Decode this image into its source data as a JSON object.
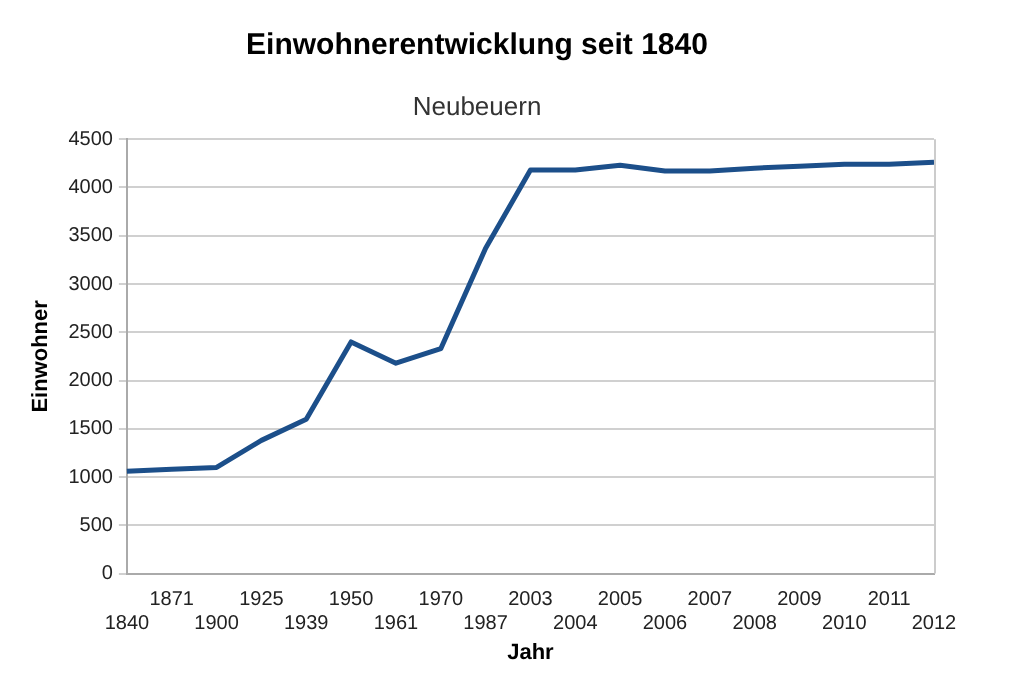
{
  "chart_data": {
    "type": "line",
    "title": "Einwohnerentwicklung seit 1840",
    "subtitle": "Neubeuern",
    "xlabel": "Jahr",
    "ylabel": "Einwohner",
    "categories": [
      "1840",
      "1871",
      "1900",
      "1925",
      "1939",
      "1950",
      "1961",
      "1970",
      "1987",
      "2003",
      "2004",
      "2005",
      "2006",
      "2007",
      "2008",
      "2009",
      "2010",
      "2011",
      "2012"
    ],
    "series": [
      {
        "color": "#1c4f8a",
        "values": [
          1060,
          1080,
          1100,
          1380,
          1600,
          2400,
          2180,
          2330,
          3370,
          4180,
          4180,
          4230,
          4170,
          4170,
          4200,
          4220,
          4240,
          4240,
          4260
        ]
      }
    ],
    "ylim": [
      0,
      4500
    ],
    "yticks": [
      0,
      500,
      1000,
      1500,
      2000,
      2500,
      3000,
      3500,
      4000,
      4500
    ],
    "grid": "y",
    "legend": false,
    "marker": "none",
    "line_style": "solid"
  }
}
